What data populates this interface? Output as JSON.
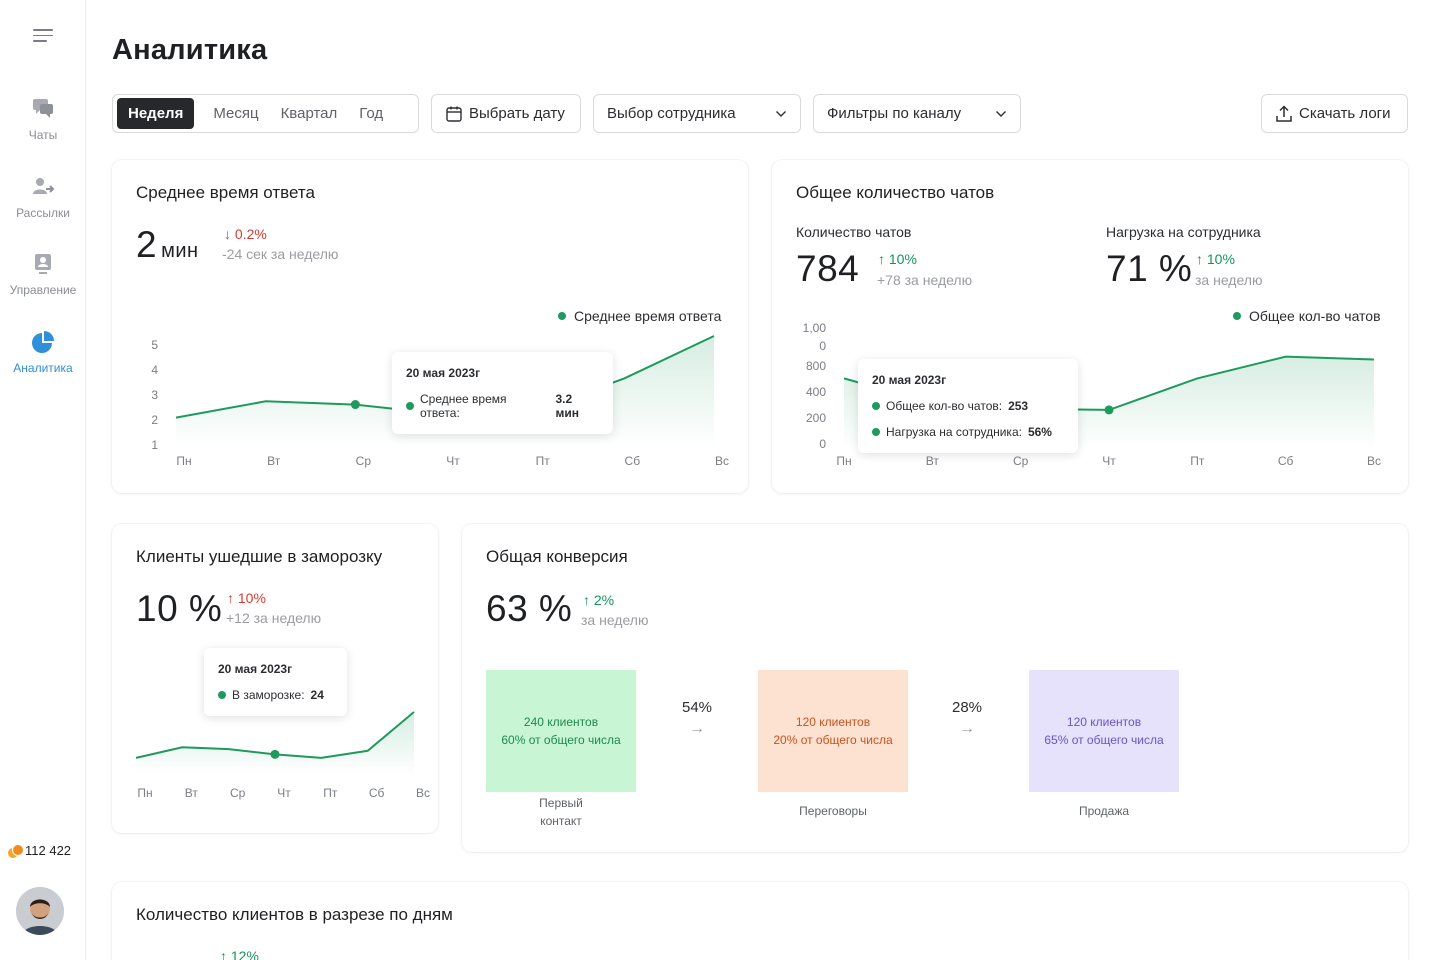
{
  "sidebar": {
    "items": [
      {
        "label": "Чаты",
        "icon": "chats-icon"
      },
      {
        "label": "Рассылки",
        "icon": "mailing-icon"
      },
      {
        "label": "Управление",
        "icon": "management-icon"
      },
      {
        "label": "Аналитика",
        "icon": "analytics-icon",
        "active": true
      }
    ],
    "coins": "112 422"
  },
  "header": {
    "title": "Аналитика"
  },
  "toolbar": {
    "periods": [
      "Неделя",
      "Месяц",
      "Квартал",
      "Год"
    ],
    "active_period": "Неделя",
    "date_label": "Выбрать дату",
    "employee_select": "Выбор сотрудника",
    "channel_select": "Фильтры по каналу",
    "download_label": "Скачать логи"
  },
  "response_time": {
    "title": "Среднее время ответа",
    "value": "2",
    "unit": "мин",
    "delta": "0.2%",
    "delta_dir": "down",
    "sub": "-24 сек за неделю",
    "legend": "Среднее время ответа",
    "tooltip": {
      "date": "20 мая 2023г",
      "label": "Среднее время ответа:",
      "value": "3.2 мин"
    }
  },
  "chats_total": {
    "title": "Общее количество чатов",
    "count_label": "Количество чатов",
    "count_value": "784",
    "count_delta": "10%",
    "count_sub": "+78 за неделю",
    "load_label": "Нагрузка на сотрудника",
    "load_value": "71 %",
    "load_delta": "10%",
    "load_sub": "за неделю",
    "legend": "Общее кол-во чатов",
    "tooltip": {
      "date": "20 мая 2023г",
      "row1_label": "Общее кол-во чатов:",
      "row1_value": "253",
      "row2_label": "Нагрузка на сотрудника:",
      "row2_value": "56%"
    }
  },
  "frozen": {
    "title": "Клиенты ушедшие в заморозку",
    "value": "10 %",
    "delta": "10%",
    "sub": "+12 за неделю",
    "tooltip": {
      "date": "20 мая 2023г",
      "label": "В заморозке:",
      "value": "24"
    }
  },
  "conversion": {
    "title": "Общая конверсия",
    "value": "63 %",
    "delta": "2%",
    "sub": "за неделю",
    "stages": [
      {
        "line1": "240 клиентов",
        "line2": "60% от общего числа",
        "name": "Первый контакт",
        "bg": "#c8f5d4",
        "fg": "#1c8a4f"
      },
      {
        "line1": "120 клиентов",
        "line2": "20% от общего числа",
        "name": "Переговоры",
        "bg": "#fde2d2",
        "fg": "#c7541e"
      },
      {
        "line1": "120 клиентов",
        "line2": "65% от общего числа",
        "name": "Продажа",
        "bg": "#e6e2fb",
        "fg": "#6b54c8"
      }
    ],
    "steps": [
      "54%",
      "28%"
    ]
  },
  "clients_by_day": {
    "title": "Количество клиентов в разрезе по дням",
    "delta": "12%"
  },
  "chart_data": [
    {
      "type": "line",
      "title": "Среднее время ответа",
      "categories": [
        "Пн",
        "Вт",
        "Ср",
        "Чт",
        "Пт",
        "Сб",
        "Вс"
      ],
      "y_ticks": [
        "5",
        "4",
        "3",
        "2",
        "1"
      ],
      "ylim": [
        1,
        5
      ],
      "series": [
        {
          "name": "Среднее время ответа",
          "values": [
            2.5,
            3.0,
            2.9,
            2.6,
            2.7,
            3.7,
            5.0
          ]
        }
      ]
    },
    {
      "type": "line",
      "title": "Общее количество чатов",
      "categories": [
        "Пн",
        "Вт",
        "Ср",
        "Чт",
        "Пт",
        "Сб",
        "Вс"
      ],
      "y_ticks": [
        "1,00\n0",
        "800",
        "400",
        "200",
        "0"
      ],
      "series": [
        {
          "name": "Общее кол-во чатов",
          "values": [
            470,
            300,
            260,
            253,
            470,
            620,
            600
          ]
        }
      ]
    },
    {
      "type": "line",
      "categories": [
        "Пн",
        "Вт",
        "Ср",
        "Чт",
        "Пт",
        "Сб",
        "Вс"
      ],
      "series": [
        {
          "name": "В заморозке",
          "values": [
            22,
            28,
            27,
            24,
            22,
            26,
            48
          ]
        }
      ]
    }
  ]
}
